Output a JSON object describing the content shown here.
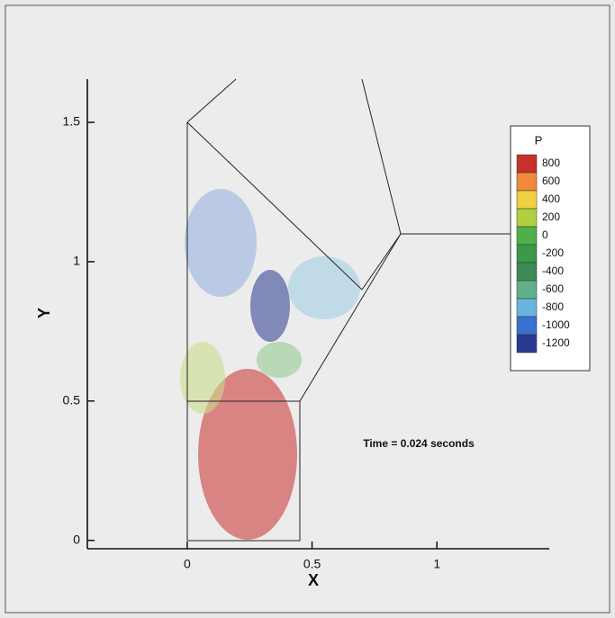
{
  "chart_data": {
    "type": "vector",
    "xlabel": "X",
    "ylabel": "Y",
    "xlim": [
      -0.4,
      1.45
    ],
    "ylim": [
      -0.03,
      1.655
    ],
    "xticks": [
      0,
      0.5,
      1
    ],
    "yticks": [
      0,
      0.5,
      1,
      1.5
    ],
    "annotation": "Time = 0.024 seconds",
    "legend": {
      "title": "P",
      "levels": [
        800,
        600,
        400,
        200,
        0,
        -200,
        -400,
        -600,
        -800,
        -1000,
        -1200
      ],
      "colors": [
        "#c8302c",
        "#f08a3a",
        "#f0d040",
        "#b0d040",
        "#4fb04a",
        "#3a9a4a",
        "#3d8a55",
        "#60b08a",
        "#6ab4e0",
        "#3a70d0",
        "#2a3a90"
      ]
    }
  }
}
